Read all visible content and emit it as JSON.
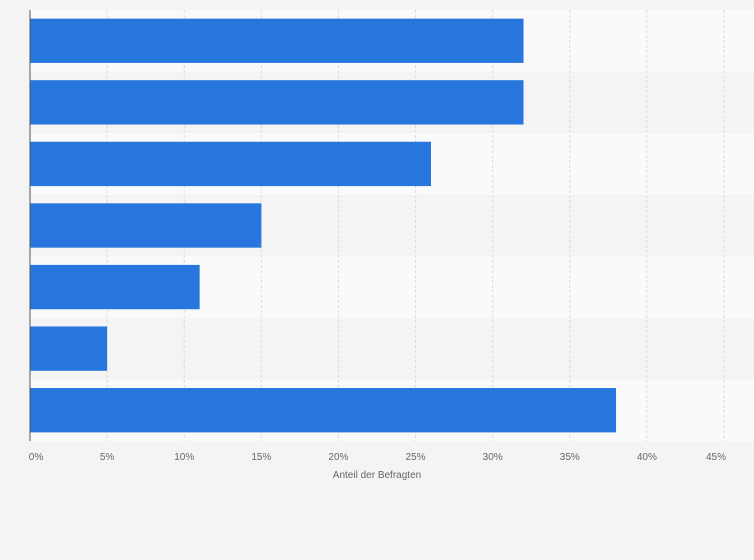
{
  "chart_data": {
    "type": "bar",
    "orientation": "horizontal",
    "categories": [
      "",
      "",
      "",
      "",
      "",
      "",
      ""
    ],
    "values": [
      32,
      32,
      26,
      15,
      11,
      5,
      38
    ],
    "xlabel": "Anteil der Befragten",
    "ylabel": "",
    "xlim": [
      0,
      45
    ],
    "ticks": [
      0,
      5,
      10,
      15,
      20,
      25,
      30,
      35,
      40,
      45
    ],
    "tick_labels": [
      "0%",
      "5%",
      "10%",
      "15%",
      "20%",
      "25%",
      "30%",
      "35%",
      "40%",
      "45%"
    ],
    "grid": true,
    "legend": "none",
    "colors": {
      "bar": "#2776de",
      "band_light": "#fafafa",
      "band_dark": "#f4f4f4",
      "grid": "#dcdcdc",
      "axis": "#555555"
    }
  }
}
